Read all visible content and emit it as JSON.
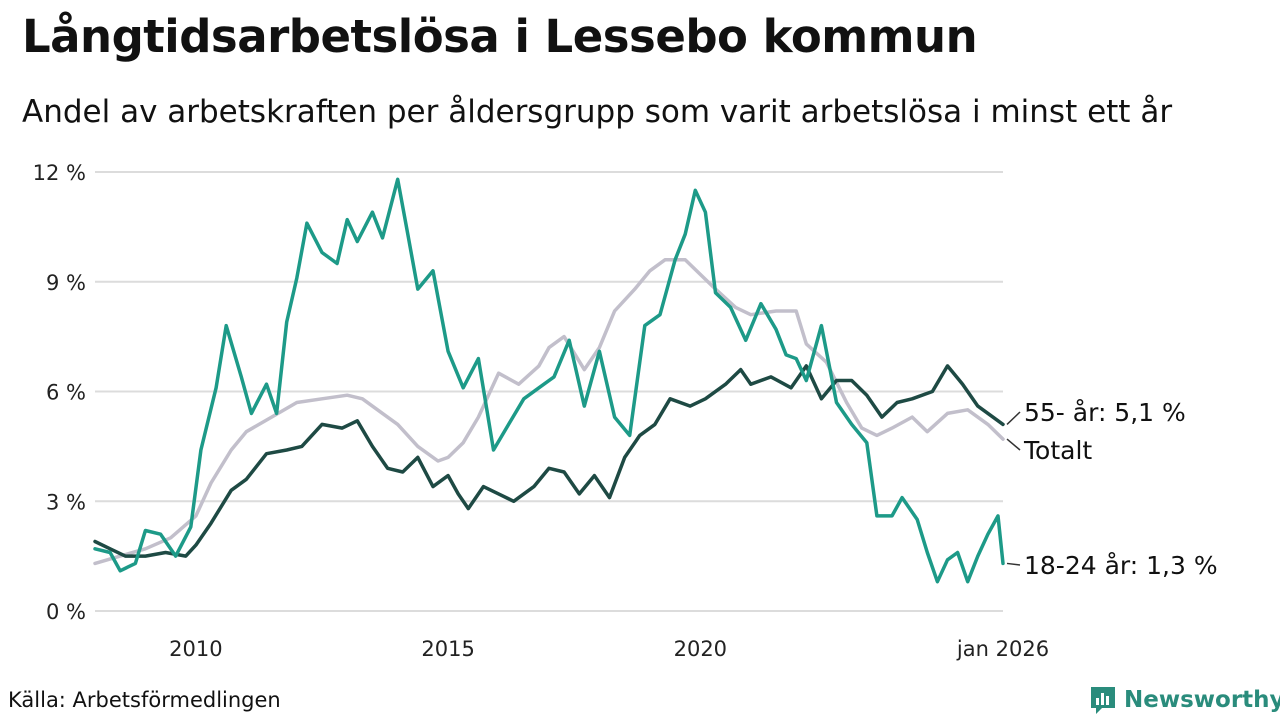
{
  "header": {
    "title": "Långtidsarbetslösa i Lessebo kommun",
    "subtitle": "Andel av arbetskraften per åldersgrupp som varit arbetslösa i minst ett år"
  },
  "footer": {
    "source": "Källa: Arbetsförmedlingen",
    "brand": "Newsworthy"
  },
  "colors": {
    "youth": "#1d9a88",
    "senior": "#1e4a44",
    "total": "#c2bfcb",
    "grid": "#dcdcdc",
    "brand": "#2a8c7c"
  },
  "icons": {
    "brand_logo": "newsworthy-logo-icon"
  },
  "chart_data": {
    "type": "line",
    "title": "Långtidsarbetslösa i Lessebo kommun",
    "xlabel": "",
    "ylabel": "",
    "ylim": [
      0,
      12
    ],
    "xlim": [
      2008.0,
      2026.0
    ],
    "y_ticks": [
      0,
      3,
      6,
      9,
      12
    ],
    "y_tick_labels": [
      "0 %",
      "3 %",
      "6 %",
      "9 %",
      "12 %"
    ],
    "x_ticks": [
      2010,
      2015,
      2020,
      2026
    ],
    "x_tick_labels": [
      "2010",
      "2015",
      "2020",
      "jan 2026"
    ],
    "series": [
      {
        "name": "Totalt",
        "label": "Totalt",
        "color": "#c2bfcb",
        "points": [
          [
            2008.0,
            1.3
          ],
          [
            2008.5,
            1.5
          ],
          [
            2009.0,
            1.7
          ],
          [
            2009.5,
            2.0
          ],
          [
            2010.0,
            2.6
          ],
          [
            2010.3,
            3.5
          ],
          [
            2010.7,
            4.4
          ],
          [
            2011.0,
            4.9
          ],
          [
            2011.5,
            5.3
          ],
          [
            2012.0,
            5.7
          ],
          [
            2012.5,
            5.8
          ],
          [
            2013.0,
            5.9
          ],
          [
            2013.3,
            5.8
          ],
          [
            2013.7,
            5.4
          ],
          [
            2014.0,
            5.1
          ],
          [
            2014.4,
            4.5
          ],
          [
            2014.8,
            4.1
          ],
          [
            2015.0,
            4.2
          ],
          [
            2015.3,
            4.6
          ],
          [
            2015.6,
            5.3
          ],
          [
            2016.0,
            6.5
          ],
          [
            2016.4,
            6.2
          ],
          [
            2016.8,
            6.7
          ],
          [
            2017.0,
            7.2
          ],
          [
            2017.3,
            7.5
          ],
          [
            2017.7,
            6.6
          ],
          [
            2018.0,
            7.2
          ],
          [
            2018.3,
            8.2
          ],
          [
            2018.7,
            8.8
          ],
          [
            2019.0,
            9.3
          ],
          [
            2019.3,
            9.6
          ],
          [
            2019.7,
            9.6
          ],
          [
            2020.0,
            9.2
          ],
          [
            2020.3,
            8.8
          ],
          [
            2020.7,
            8.3
          ],
          [
            2021.0,
            8.1
          ],
          [
            2021.5,
            8.2
          ],
          [
            2021.9,
            8.2
          ],
          [
            2022.1,
            7.3
          ],
          [
            2022.5,
            6.8
          ],
          [
            2022.9,
            5.7
          ],
          [
            2023.2,
            5.0
          ],
          [
            2023.5,
            4.8
          ],
          [
            2023.8,
            5.0
          ],
          [
            2024.2,
            5.3
          ],
          [
            2024.5,
            4.9
          ],
          [
            2024.9,
            5.4
          ],
          [
            2025.3,
            5.5
          ],
          [
            2025.7,
            5.1
          ],
          [
            2026.0,
            4.7
          ]
        ]
      },
      {
        "name": "55- år",
        "label": "55- år: 5,1 %",
        "color": "#1e4a44",
        "points": [
          [
            2008.0,
            1.9
          ],
          [
            2008.3,
            1.7
          ],
          [
            2008.6,
            1.5
          ],
          [
            2009.0,
            1.5
          ],
          [
            2009.4,
            1.6
          ],
          [
            2009.8,
            1.5
          ],
          [
            2010.0,
            1.8
          ],
          [
            2010.3,
            2.4
          ],
          [
            2010.7,
            3.3
          ],
          [
            2011.0,
            3.6
          ],
          [
            2011.4,
            4.3
          ],
          [
            2011.8,
            4.4
          ],
          [
            2012.1,
            4.5
          ],
          [
            2012.5,
            5.1
          ],
          [
            2012.9,
            5.0
          ],
          [
            2013.2,
            5.2
          ],
          [
            2013.5,
            4.5
          ],
          [
            2013.8,
            3.9
          ],
          [
            2014.1,
            3.8
          ],
          [
            2014.4,
            4.2
          ],
          [
            2014.7,
            3.4
          ],
          [
            2015.0,
            3.7
          ],
          [
            2015.2,
            3.2
          ],
          [
            2015.4,
            2.8
          ],
          [
            2015.7,
            3.4
          ],
          [
            2016.0,
            3.2
          ],
          [
            2016.3,
            3.0
          ],
          [
            2016.7,
            3.4
          ],
          [
            2017.0,
            3.9
          ],
          [
            2017.3,
            3.8
          ],
          [
            2017.6,
            3.2
          ],
          [
            2017.9,
            3.7
          ],
          [
            2018.2,
            3.1
          ],
          [
            2018.5,
            4.2
          ],
          [
            2018.8,
            4.8
          ],
          [
            2019.1,
            5.1
          ],
          [
            2019.4,
            5.8
          ],
          [
            2019.8,
            5.6
          ],
          [
            2020.1,
            5.8
          ],
          [
            2020.5,
            6.2
          ],
          [
            2020.8,
            6.6
          ],
          [
            2021.0,
            6.2
          ],
          [
            2021.4,
            6.4
          ],
          [
            2021.8,
            6.1
          ],
          [
            2022.1,
            6.7
          ],
          [
            2022.4,
            5.8
          ],
          [
            2022.7,
            6.3
          ],
          [
            2023.0,
            6.3
          ],
          [
            2023.3,
            5.9
          ],
          [
            2023.6,
            5.3
          ],
          [
            2023.9,
            5.7
          ],
          [
            2024.2,
            5.8
          ],
          [
            2024.6,
            6.0
          ],
          [
            2024.9,
            6.7
          ],
          [
            2025.2,
            6.2
          ],
          [
            2025.5,
            5.6
          ],
          [
            2025.8,
            5.3
          ],
          [
            2026.0,
            5.1
          ]
        ]
      },
      {
        "name": "18-24 år",
        "label": "18-24 år: 1,3 %",
        "color": "#1d9a88",
        "points": [
          [
            2008.0,
            1.7
          ],
          [
            2008.3,
            1.6
          ],
          [
            2008.5,
            1.1
          ],
          [
            2008.8,
            1.3
          ],
          [
            2009.0,
            2.2
          ],
          [
            2009.3,
            2.1
          ],
          [
            2009.6,
            1.5
          ],
          [
            2009.9,
            2.3
          ],
          [
            2010.1,
            4.4
          ],
          [
            2010.4,
            6.1
          ],
          [
            2010.6,
            7.8
          ],
          [
            2010.9,
            6.4
          ],
          [
            2011.1,
            5.4
          ],
          [
            2011.4,
            6.2
          ],
          [
            2011.6,
            5.4
          ],
          [
            2011.8,
            7.9
          ],
          [
            2012.0,
            9.1
          ],
          [
            2012.2,
            10.6
          ],
          [
            2012.5,
            9.8
          ],
          [
            2012.8,
            9.5
          ],
          [
            2013.0,
            10.7
          ],
          [
            2013.2,
            10.1
          ],
          [
            2013.5,
            10.9
          ],
          [
            2013.7,
            10.2
          ],
          [
            2014.0,
            11.8
          ],
          [
            2014.2,
            10.3
          ],
          [
            2014.4,
            8.8
          ],
          [
            2014.7,
            9.3
          ],
          [
            2015.0,
            7.1
          ],
          [
            2015.3,
            6.1
          ],
          [
            2015.6,
            6.9
          ],
          [
            2015.9,
            4.4
          ],
          [
            2016.2,
            5.1
          ],
          [
            2016.5,
            5.8
          ],
          [
            2016.8,
            6.1
          ],
          [
            2017.1,
            6.4
          ],
          [
            2017.4,
            7.4
          ],
          [
            2017.7,
            5.6
          ],
          [
            2018.0,
            7.1
          ],
          [
            2018.3,
            5.3
          ],
          [
            2018.6,
            4.8
          ],
          [
            2018.9,
            7.8
          ],
          [
            2019.2,
            8.1
          ],
          [
            2019.5,
            9.6
          ],
          [
            2019.7,
            10.3
          ],
          [
            2019.9,
            11.5
          ],
          [
            2020.1,
            10.9
          ],
          [
            2020.3,
            8.7
          ],
          [
            2020.6,
            8.3
          ],
          [
            2020.9,
            7.4
          ],
          [
            2021.2,
            8.4
          ],
          [
            2021.5,
            7.7
          ],
          [
            2021.7,
            7.0
          ],
          [
            2021.9,
            6.9
          ],
          [
            2022.1,
            6.3
          ],
          [
            2022.4,
            7.8
          ],
          [
            2022.7,
            5.7
          ],
          [
            2023.0,
            5.1
          ],
          [
            2023.3,
            4.6
          ],
          [
            2023.5,
            2.6
          ],
          [
            2023.8,
            2.6
          ],
          [
            2024.0,
            3.1
          ],
          [
            2024.3,
            2.5
          ],
          [
            2024.5,
            1.6
          ],
          [
            2024.7,
            0.8
          ],
          [
            2024.9,
            1.4
          ],
          [
            2025.1,
            1.6
          ],
          [
            2025.3,
            0.8
          ],
          [
            2025.5,
            1.5
          ],
          [
            2025.7,
            2.1
          ],
          [
            2025.9,
            2.6
          ],
          [
            2026.0,
            1.3
          ]
        ]
      }
    ]
  }
}
